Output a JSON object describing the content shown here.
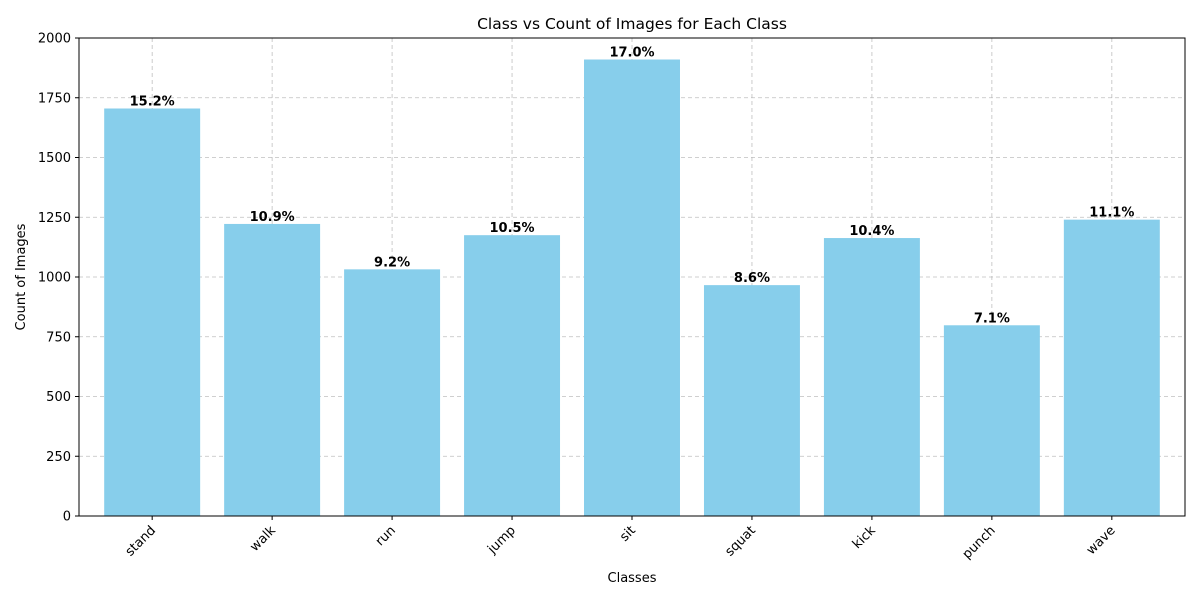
{
  "chart_data": {
    "type": "bar",
    "title": "Class vs Count of Images for Each Class",
    "xlabel": "Classes",
    "ylabel": "Count of Images",
    "categories": [
      "stand",
      "walk",
      "run",
      "jump",
      "sit",
      "squat",
      "kick",
      "punch",
      "wave"
    ],
    "values": [
      1705,
      1222,
      1032,
      1175,
      1910,
      966,
      1163,
      798,
      1240
    ],
    "data_labels": [
      "15.2%",
      "10.9%",
      "9.2%",
      "10.5%",
      "17.0%",
      "8.6%",
      "10.4%",
      "7.1%",
      "11.1%"
    ],
    "ylim": [
      0,
      2000
    ],
    "yticks": [
      0,
      250,
      500,
      750,
      1000,
      1250,
      1500,
      1750,
      2000
    ],
    "grid": true,
    "bar_color": "#87CEEB"
  }
}
